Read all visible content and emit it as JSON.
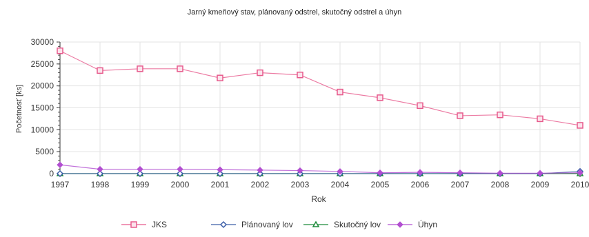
{
  "chart_data": {
    "type": "line",
    "title": "Jarný kmeňový stav, plánovaný odstrel, skutočný odstrel a úhyn",
    "xlabel": "Rok",
    "ylabel": "Početnosť [ks]",
    "categories": [
      "1997",
      "1998",
      "1999",
      "2000",
      "2001",
      "2002",
      "2003",
      "2004",
      "2005",
      "2006",
      "2007",
      "2008",
      "2009",
      "2010"
    ],
    "ylim": [
      0,
      30000
    ],
    "yticks": [
      "0",
      "5000",
      "10000",
      "15000",
      "20000",
      "25000",
      "30000"
    ],
    "grid": true,
    "legend_position": "bottom",
    "series": [
      {
        "name": "JKS",
        "color": "#e75a8c",
        "marker": "square",
        "values": [
          28000,
          23500,
          23900,
          23900,
          21800,
          23000,
          22500,
          18600,
          17300,
          15500,
          13200,
          13400,
          12500,
          11000
        ]
      },
      {
        "name": "Plánovaný lov",
        "color": "#3d5fa8",
        "marker": "diamond-open",
        "values": [
          0,
          0,
          0,
          0,
          0,
          0,
          0,
          0,
          0,
          0,
          0,
          0,
          0,
          500
        ]
      },
      {
        "name": "Skutočný lov",
        "color": "#1c8a3a",
        "marker": "triangle",
        "values": [
          0,
          0,
          0,
          0,
          0,
          0,
          0,
          0,
          0,
          0,
          0,
          0,
          0,
          0
        ]
      },
      {
        "name": "Úhyn",
        "color": "#b24fd1",
        "marker": "diamond",
        "values": [
          2000,
          1000,
          1000,
          1000,
          900,
          800,
          700,
          500,
          200,
          300,
          200,
          100,
          100,
          200
        ]
      }
    ]
  }
}
